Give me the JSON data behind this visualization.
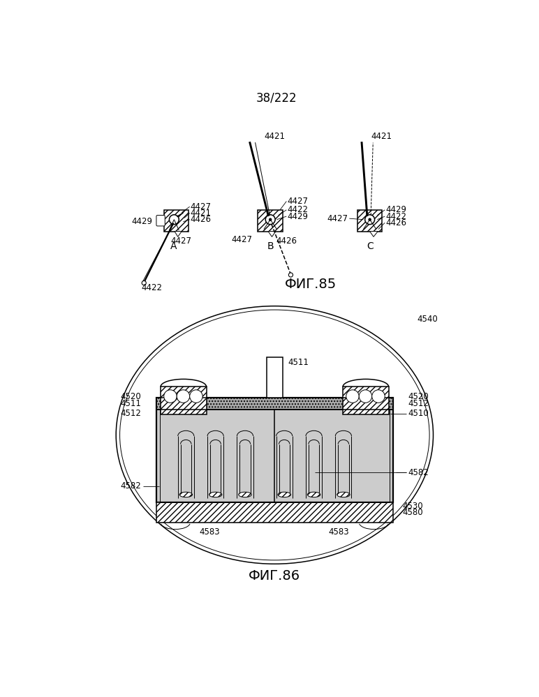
{
  "page_label": "38/222",
  "fig85_label": "ФИГ.85",
  "fig86_label": "ФИГ.86",
  "bg_color": "#ffffff",
  "line_color": "#000000",
  "font_size_ref": 8.5,
  "font_size_label": 14,
  "font_size_page": 12
}
